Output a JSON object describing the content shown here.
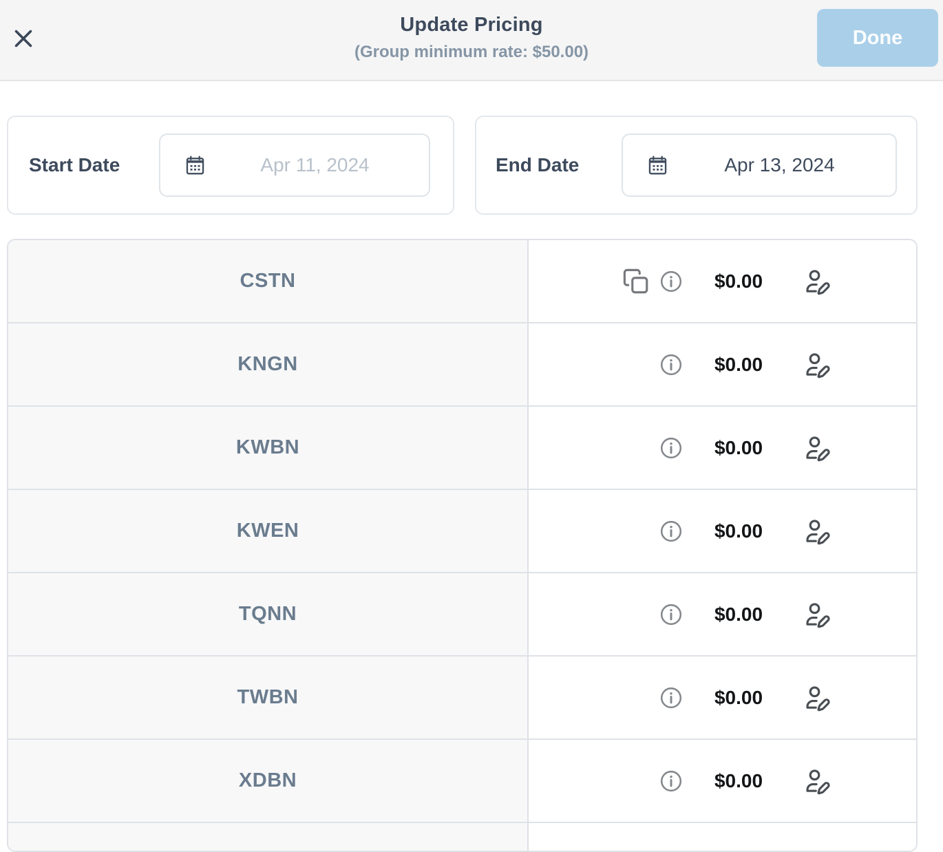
{
  "header": {
    "title": "Update Pricing",
    "subtitle": "(Group minimum rate: $50.00)",
    "done_label": "Done"
  },
  "dates": {
    "start": {
      "label": "Start Date",
      "placeholder": "Apr 11, 2024",
      "value": ""
    },
    "end": {
      "label": "End Date",
      "value": "Apr 13, 2024"
    }
  },
  "table": {
    "rows": [
      {
        "code": "CSTN",
        "price": "$0.00",
        "has_copy_icon": true
      },
      {
        "code": "KNGN",
        "price": "$0.00",
        "has_copy_icon": false
      },
      {
        "code": "KWBN",
        "price": "$0.00",
        "has_copy_icon": false
      },
      {
        "code": "KWEN",
        "price": "$0.00",
        "has_copy_icon": false
      },
      {
        "code": "TQNN",
        "price": "$0.00",
        "has_copy_icon": false
      },
      {
        "code": "TWBN",
        "price": "$0.00",
        "has_copy_icon": false
      },
      {
        "code": "XDBN",
        "price": "$0.00",
        "has_copy_icon": false
      }
    ]
  },
  "icons": {
    "close": "close-x",
    "calendar": "calendar",
    "copy": "copy-rate",
    "info": "info-circle",
    "edit": "user-edit-pencil"
  },
  "colors": {
    "header_bg": "#f5f5f6",
    "done_button_bg": "#aacfe9",
    "title_text": "#3d4a5c",
    "subtitle_text": "#8595a5",
    "row_label_text": "#6a7c8e",
    "price_text": "#131517",
    "table_border": "#dee2e7",
    "left_cell_bg": "#f8f8f9",
    "placeholder_text": "#b8c1ca"
  }
}
